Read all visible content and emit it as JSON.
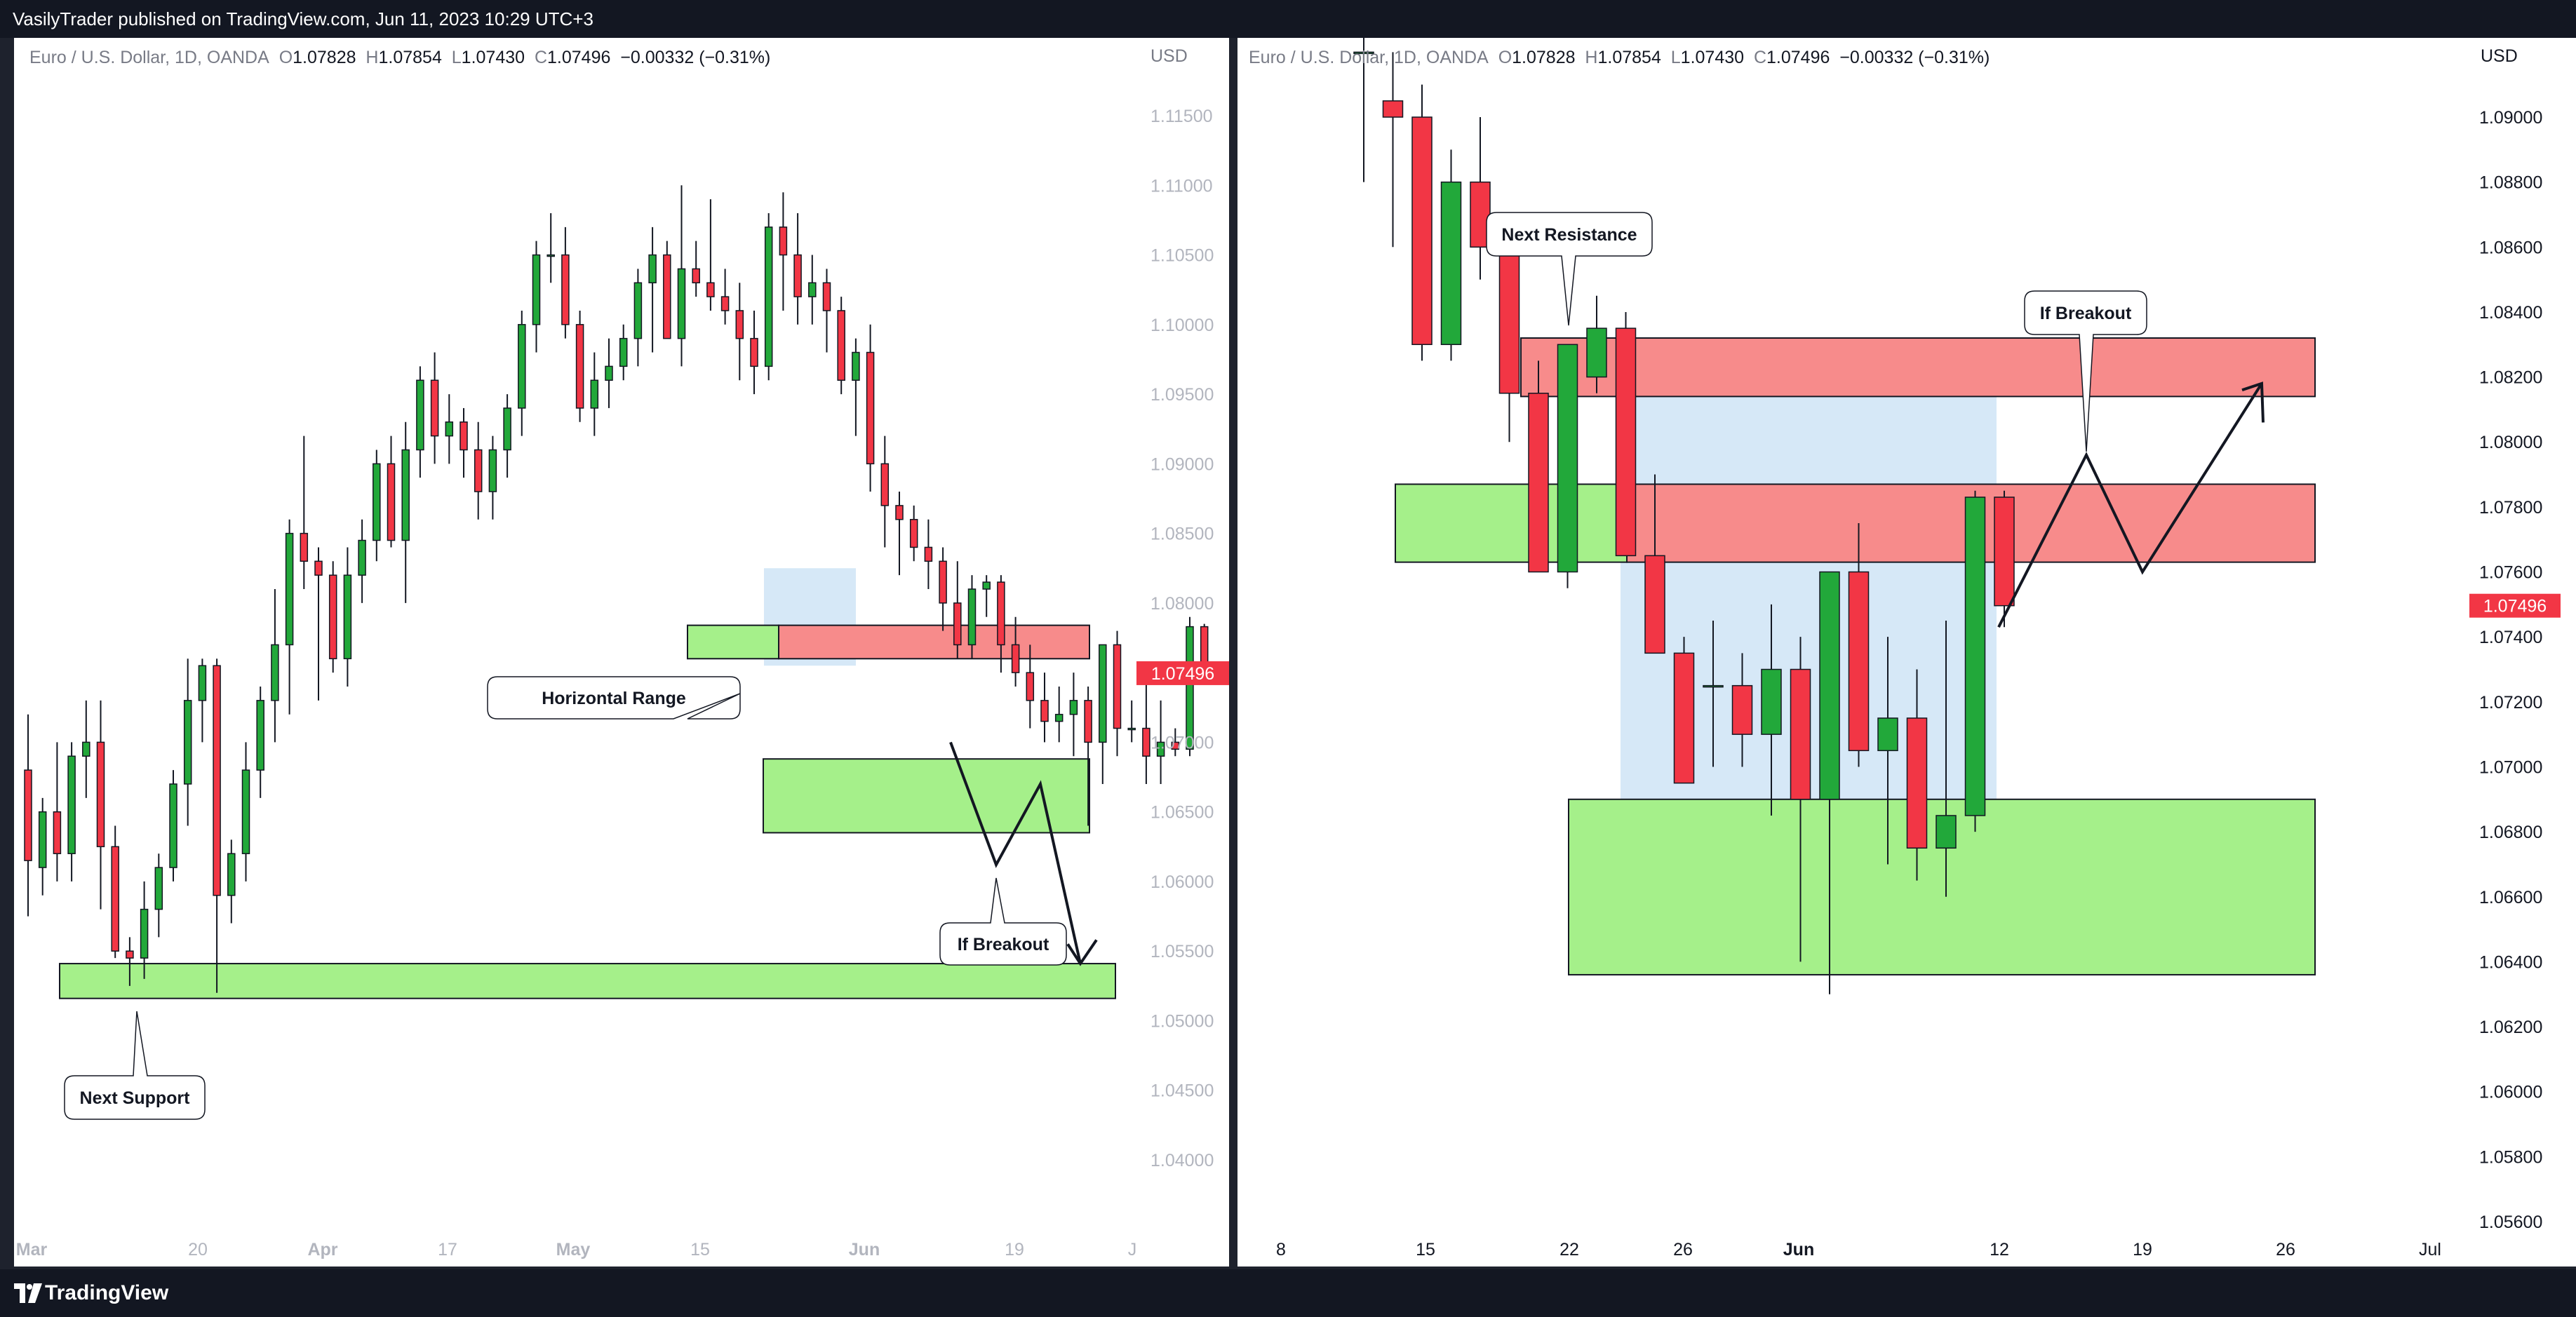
{
  "header": {
    "published_text": "VasilyTrader published on TradingView.com, Jun 11, 2023 10:29 UTC+3"
  },
  "footer": {
    "brand": "TradingView"
  },
  "colors": {
    "up": "#22a83a",
    "down": "#f23645",
    "zone_green": "#a5f08a",
    "zone_red": "#f78b8b",
    "range_blue": "#d6e8f7",
    "price_tag": "#f23645"
  },
  "legend": {
    "symbol": "Euro / U.S. Dollar, 1D, OANDA",
    "o_key": "O",
    "o_val": "1.07828",
    "h_key": "H",
    "h_val": "1.07854",
    "l_key": "L",
    "l_val": "1.07430",
    "c_key": "C",
    "c_val": "1.07496",
    "change": "−0.00332 (−0.31%)"
  },
  "currency": "USD",
  "last_price": "1.07496",
  "chart_data": [
    {
      "type": "candlestick",
      "title": "Euro / U.S. Dollar, 1D, OANDA",
      "ylim": [
        1.0355,
        1.1235
      ],
      "x_tick_labels": [
        "Mar",
        "20",
        "Apr",
        "17",
        "May",
        "15",
        "Jun",
        "19",
        "J"
      ],
      "y_tick_labels": [
        "1.11500",
        "1.11000",
        "1.10500",
        "1.10000",
        "1.09500",
        "1.09000",
        "1.08500",
        "1.08000",
        "1.07500",
        "1.07000",
        "1.06500",
        "1.06000",
        "1.05500",
        "1.05000",
        "1.04500",
        "1.04000"
      ],
      "candles": [
        [
          1.068,
          1.072,
          1.0575,
          1.0615
        ],
        [
          1.061,
          1.066,
          1.059,
          1.065
        ],
        [
          1.065,
          1.07,
          1.06,
          1.062
        ],
        [
          1.062,
          1.07,
          1.06,
          1.069
        ],
        [
          1.069,
          1.073,
          1.066,
          1.07
        ],
        [
          1.07,
          1.073,
          1.058,
          1.0625
        ],
        [
          1.0625,
          1.064,
          1.0545,
          1.055
        ],
        [
          1.055,
          1.056,
          1.0525,
          1.0545
        ],
        [
          1.0545,
          1.06,
          1.053,
          1.058
        ],
        [
          1.058,
          1.062,
          1.056,
          1.061
        ],
        [
          1.061,
          1.068,
          1.06,
          1.067
        ],
        [
          1.067,
          1.076,
          1.064,
          1.073
        ],
        [
          1.073,
          1.076,
          1.07,
          1.0755
        ],
        [
          1.0755,
          1.076,
          1.052,
          1.059
        ],
        [
          1.059,
          1.063,
          1.057,
          1.062
        ],
        [
          1.062,
          1.07,
          1.06,
          1.068
        ],
        [
          1.068,
          1.074,
          1.066,
          1.073
        ],
        [
          1.073,
          1.081,
          1.07,
          1.077
        ],
        [
          1.077,
          1.086,
          1.072,
          1.085
        ],
        [
          1.085,
          1.092,
          1.081,
          1.083
        ],
        [
          1.083,
          1.084,
          1.073,
          1.082
        ],
        [
          1.082,
          1.083,
          1.075,
          1.076
        ],
        [
          1.076,
          1.084,
          1.074,
          1.082
        ],
        [
          1.082,
          1.086,
          1.08,
          1.0845
        ],
        [
          1.0845,
          1.091,
          1.083,
          1.09
        ],
        [
          1.09,
          1.092,
          1.084,
          1.0845
        ],
        [
          1.0845,
          1.093,
          1.08,
          1.091
        ],
        [
          1.091,
          1.097,
          1.089,
          1.096
        ],
        [
          1.096,
          1.098,
          1.09,
          1.092
        ],
        [
          1.092,
          1.095,
          1.09,
          1.093
        ],
        [
          1.093,
          1.094,
          1.089,
          1.091
        ],
        [
          1.091,
          1.093,
          1.086,
          1.088
        ],
        [
          1.088,
          1.092,
          1.086,
          1.091
        ],
        [
          1.091,
          1.095,
          1.089,
          1.094
        ],
        [
          1.094,
          1.101,
          1.092,
          1.1
        ],
        [
          1.1,
          1.106,
          1.098,
          1.105
        ],
        [
          1.105,
          1.108,
          1.103,
          1.105
        ],
        [
          1.105,
          1.107,
          1.099,
          1.1
        ],
        [
          1.1,
          1.101,
          1.093,
          1.094
        ],
        [
          1.094,
          1.098,
          1.092,
          1.096
        ],
        [
          1.096,
          1.099,
          1.094,
          1.097
        ],
        [
          1.097,
          1.1,
          1.096,
          1.099
        ],
        [
          1.099,
          1.104,
          1.097,
          1.103
        ],
        [
          1.103,
          1.107,
          1.098,
          1.105
        ],
        [
          1.105,
          1.106,
          1.099,
          1.099
        ],
        [
          1.099,
          1.11,
          1.097,
          1.104
        ],
        [
          1.104,
          1.106,
          1.102,
          1.103
        ],
        [
          1.103,
          1.109,
          1.101,
          1.102
        ],
        [
          1.102,
          1.104,
          1.1,
          1.101
        ],
        [
          1.101,
          1.103,
          1.096,
          1.099
        ],
        [
          1.099,
          1.101,
          1.095,
          1.097
        ],
        [
          1.097,
          1.108,
          1.096,
          1.107
        ],
        [
          1.107,
          1.1095,
          1.101,
          1.105
        ],
        [
          1.105,
          1.108,
          1.1,
          1.102
        ],
        [
          1.102,
          1.105,
          1.1,
          1.103
        ],
        [
          1.103,
          1.104,
          1.098,
          1.101
        ],
        [
          1.101,
          1.102,
          1.095,
          1.096
        ],
        [
          1.096,
          1.099,
          1.092,
          1.098
        ],
        [
          1.098,
          1.1,
          1.088,
          1.09
        ],
        [
          1.09,
          1.092,
          1.084,
          1.087
        ],
        [
          1.087,
          1.088,
          1.082,
          1.086
        ],
        [
          1.086,
          1.087,
          1.083,
          1.084
        ],
        [
          1.084,
          1.086,
          1.081,
          1.083
        ],
        [
          1.083,
          1.084,
          1.078,
          1.08
        ],
        [
          1.08,
          1.083,
          1.076,
          1.077
        ],
        [
          1.077,
          1.082,
          1.076,
          1.081
        ],
        [
          1.081,
          1.082,
          1.079,
          1.0815
        ],
        [
          1.0815,
          1.082,
          1.075,
          1.077
        ],
        [
          1.077,
          1.079,
          1.074,
          1.075
        ],
        [
          1.075,
          1.077,
          1.071,
          1.073
        ],
        [
          1.073,
          1.075,
          1.07,
          1.0715
        ],
        [
          1.0715,
          1.074,
          1.07,
          1.072
        ],
        [
          1.072,
          1.075,
          1.069,
          1.073
        ],
        [
          1.073,
          1.074,
          1.064,
          1.07
        ],
        [
          1.07,
          1.077,
          1.067,
          1.077
        ],
        [
          1.077,
          1.078,
          1.069,
          1.071
        ],
        [
          1.071,
          1.073,
          1.07,
          1.071
        ],
        [
          1.071,
          1.075,
          1.067,
          1.069
        ],
        [
          1.069,
          1.073,
          1.067,
          1.07
        ],
        [
          1.07,
          1.071,
          1.069,
          1.0695
        ],
        [
          1.0695,
          1.079,
          1.069,
          1.0783
        ],
        [
          1.0783,
          1.0785,
          1.0743,
          1.07496
        ]
      ],
      "annotations": [
        "Horizontal Range",
        "If Breakout",
        "Next Support"
      ]
    },
    {
      "type": "candlestick",
      "title": "Euro / U.S. Dollar, 1D, OANDA",
      "ylim": [
        1.055,
        1.0915
      ],
      "x_tick_labels": [
        "8",
        "15",
        "22",
        "26",
        "Jun",
        "12",
        "19",
        "26",
        "Jul"
      ],
      "y_tick_labels": [
        "1.09000",
        "1.08800",
        "1.08600",
        "1.08400",
        "1.08200",
        "1.08000",
        "1.07800",
        "1.07600",
        "1.07400",
        "1.07200",
        "1.07000",
        "1.06800",
        "1.06600",
        "1.06400",
        "1.06200",
        "1.06000",
        "1.05800",
        "1.05600"
      ],
      "candles": [
        [
          1.092,
          1.0935,
          1.088,
          1.092
        ],
        [
          1.0905,
          1.092,
          1.086,
          1.09
        ],
        [
          1.09,
          1.091,
          1.0825,
          1.083
        ],
        [
          1.083,
          1.089,
          1.0825,
          1.088
        ],
        [
          1.088,
          1.09,
          1.085,
          1.086
        ],
        [
          1.086,
          1.087,
          1.08,
          1.0815
        ],
        [
          1.0815,
          1.0825,
          1.076,
          1.076
        ],
        [
          1.076,
          1.083,
          1.0755,
          1.083
        ],
        [
          1.082,
          1.0845,
          1.0815,
          1.0835
        ],
        [
          1.0835,
          1.084,
          1.0765,
          1.0765
        ],
        [
          1.0765,
          1.079,
          1.0735,
          1.0735
        ],
        [
          1.0735,
          1.074,
          1.0695,
          1.0695
        ],
        [
          1.0725,
          1.0745,
          1.07,
          1.0725
        ],
        [
          1.0725,
          1.0735,
          1.07,
          1.071
        ],
        [
          1.071,
          1.075,
          1.0685,
          1.073
        ],
        [
          1.073,
          1.074,
          1.064,
          1.069
        ],
        [
          1.069,
          1.076,
          1.063,
          1.076
        ],
        [
          1.076,
          1.0775,
          1.07,
          1.0705
        ],
        [
          1.0705,
          1.074,
          1.067,
          1.0715
        ],
        [
          1.0715,
          1.073,
          1.0665,
          1.0675
        ],
        [
          1.0675,
          1.0745,
          1.066,
          1.0685
        ],
        [
          1.0685,
          1.0785,
          1.068,
          1.0783
        ],
        [
          1.0783,
          1.0785,
          1.0743,
          1.07496
        ]
      ],
      "annotations": [
        "Next Resistance",
        "If Breakout"
      ]
    }
  ]
}
